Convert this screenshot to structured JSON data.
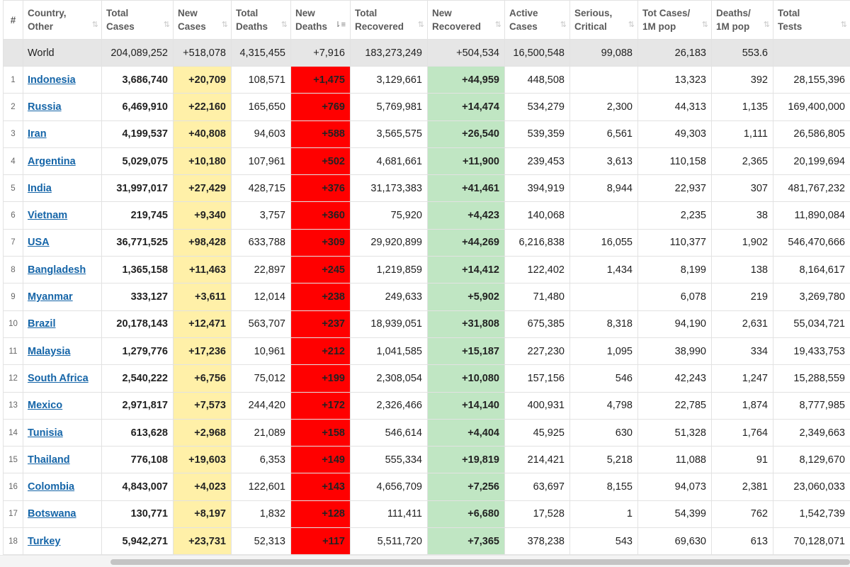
{
  "headers": [
    {
      "key": "rank",
      "lines": [
        "#"
      ],
      "sort": ""
    },
    {
      "key": "country",
      "lines": [
        "Country,",
        "Other"
      ],
      "sort": "⇅"
    },
    {
      "key": "total_cases",
      "lines": [
        "Total",
        "Cases"
      ],
      "sort": "⇅"
    },
    {
      "key": "new_cases",
      "lines": [
        "New",
        "Cases"
      ],
      "sort": "⇅"
    },
    {
      "key": "total_deaths",
      "lines": [
        "Total",
        "Deaths"
      ],
      "sort": "⇅"
    },
    {
      "key": "new_deaths",
      "lines": [
        "New",
        "Deaths"
      ],
      "sort": "⇂≡"
    },
    {
      "key": "total_recovered",
      "lines": [
        "Total",
        "Recovered"
      ],
      "sort": "⇅"
    },
    {
      "key": "new_recovered",
      "lines": [
        "New",
        "Recovered"
      ],
      "sort": "⇅"
    },
    {
      "key": "active_cases",
      "lines": [
        "Active",
        "Cases"
      ],
      "sort": "⇅"
    },
    {
      "key": "serious_critical",
      "lines": [
        "Serious,",
        "Critical"
      ],
      "sort": "⇅"
    },
    {
      "key": "tot_cases_1m",
      "lines": [
        "Tot Cases/",
        "1M pop"
      ],
      "sort": "⇅"
    },
    {
      "key": "deaths_1m",
      "lines": [
        "Deaths/",
        "1M pop"
      ],
      "sort": "⇅"
    },
    {
      "key": "total_tests",
      "lines": [
        "Total",
        "Tests"
      ],
      "sort": "⇅"
    }
  ],
  "world": {
    "rank": "",
    "country": "World",
    "total_cases": "204,089,252",
    "new_cases": "+518,078",
    "total_deaths": "4,315,455",
    "new_deaths": "+7,916",
    "total_recovered": "183,273,249",
    "new_recovered": "+504,534",
    "active_cases": "16,500,548",
    "serious_critical": "99,088",
    "tot_cases_1m": "26,183",
    "deaths_1m": "553.6",
    "total_tests": ""
  },
  "rows": [
    {
      "rank": "1",
      "country": "Indonesia",
      "total_cases": "3,686,740",
      "new_cases": "+20,709",
      "total_deaths": "108,571",
      "new_deaths": "+1,475",
      "total_recovered": "3,129,661",
      "new_recovered": "+44,959",
      "active_cases": "448,508",
      "serious_critical": "",
      "tot_cases_1m": "13,323",
      "deaths_1m": "392",
      "total_tests": "28,155,396"
    },
    {
      "rank": "2",
      "country": "Russia",
      "total_cases": "6,469,910",
      "new_cases": "+22,160",
      "total_deaths": "165,650",
      "new_deaths": "+769",
      "total_recovered": "5,769,981",
      "new_recovered": "+14,474",
      "active_cases": "534,279",
      "serious_critical": "2,300",
      "tot_cases_1m": "44,313",
      "deaths_1m": "1,135",
      "total_tests": "169,400,000"
    },
    {
      "rank": "3",
      "country": "Iran",
      "total_cases": "4,199,537",
      "new_cases": "+40,808",
      "total_deaths": "94,603",
      "new_deaths": "+588",
      "total_recovered": "3,565,575",
      "new_recovered": "+26,540",
      "active_cases": "539,359",
      "serious_critical": "6,561",
      "tot_cases_1m": "49,303",
      "deaths_1m": "1,111",
      "total_tests": "26,586,805"
    },
    {
      "rank": "4",
      "country": "Argentina",
      "total_cases": "5,029,075",
      "new_cases": "+10,180",
      "total_deaths": "107,961",
      "new_deaths": "+502",
      "total_recovered": "4,681,661",
      "new_recovered": "+11,900",
      "active_cases": "239,453",
      "serious_critical": "3,613",
      "tot_cases_1m": "110,158",
      "deaths_1m": "2,365",
      "total_tests": "20,199,694"
    },
    {
      "rank": "5",
      "country": "India",
      "total_cases": "31,997,017",
      "new_cases": "+27,429",
      "total_deaths": "428,715",
      "new_deaths": "+376",
      "total_recovered": "31,173,383",
      "new_recovered": "+41,461",
      "active_cases": "394,919",
      "serious_critical": "8,944",
      "tot_cases_1m": "22,937",
      "deaths_1m": "307",
      "total_tests": "481,767,232"
    },
    {
      "rank": "6",
      "country": "Vietnam",
      "total_cases": "219,745",
      "new_cases": "+9,340",
      "total_deaths": "3,757",
      "new_deaths": "+360",
      "total_recovered": "75,920",
      "new_recovered": "+4,423",
      "active_cases": "140,068",
      "serious_critical": "",
      "tot_cases_1m": "2,235",
      "deaths_1m": "38",
      "total_tests": "11,890,084"
    },
    {
      "rank": "7",
      "country": "USA",
      "total_cases": "36,771,525",
      "new_cases": "+98,428",
      "total_deaths": "633,788",
      "new_deaths": "+309",
      "total_recovered": "29,920,899",
      "new_recovered": "+44,269",
      "active_cases": "6,216,838",
      "serious_critical": "16,055",
      "tot_cases_1m": "110,377",
      "deaths_1m": "1,902",
      "total_tests": "546,470,666"
    },
    {
      "rank": "8",
      "country": "Bangladesh",
      "total_cases": "1,365,158",
      "new_cases": "+11,463",
      "total_deaths": "22,897",
      "new_deaths": "+245",
      "total_recovered": "1,219,859",
      "new_recovered": "+14,412",
      "active_cases": "122,402",
      "serious_critical": "1,434",
      "tot_cases_1m": "8,199",
      "deaths_1m": "138",
      "total_tests": "8,164,617"
    },
    {
      "rank": "9",
      "country": "Myanmar",
      "total_cases": "333,127",
      "new_cases": "+3,611",
      "total_deaths": "12,014",
      "new_deaths": "+238",
      "total_recovered": "249,633",
      "new_recovered": "+5,902",
      "active_cases": "71,480",
      "serious_critical": "",
      "tot_cases_1m": "6,078",
      "deaths_1m": "219",
      "total_tests": "3,269,780"
    },
    {
      "rank": "10",
      "country": "Brazil",
      "total_cases": "20,178,143",
      "new_cases": "+12,471",
      "total_deaths": "563,707",
      "new_deaths": "+237",
      "total_recovered": "18,939,051",
      "new_recovered": "+31,808",
      "active_cases": "675,385",
      "serious_critical": "8,318",
      "tot_cases_1m": "94,190",
      "deaths_1m": "2,631",
      "total_tests": "55,034,721"
    },
    {
      "rank": "11",
      "country": "Malaysia",
      "total_cases": "1,279,776",
      "new_cases": "+17,236",
      "total_deaths": "10,961",
      "new_deaths": "+212",
      "total_recovered": "1,041,585",
      "new_recovered": "+15,187",
      "active_cases": "227,230",
      "serious_critical": "1,095",
      "tot_cases_1m": "38,990",
      "deaths_1m": "334",
      "total_tests": "19,433,753"
    },
    {
      "rank": "12",
      "country": "South Africa",
      "total_cases": "2,540,222",
      "new_cases": "+6,756",
      "total_deaths": "75,012",
      "new_deaths": "+199",
      "total_recovered": "2,308,054",
      "new_recovered": "+10,080",
      "active_cases": "157,156",
      "serious_critical": "546",
      "tot_cases_1m": "42,243",
      "deaths_1m": "1,247",
      "total_tests": "15,288,559"
    },
    {
      "rank": "13",
      "country": "Mexico",
      "total_cases": "2,971,817",
      "new_cases": "+7,573",
      "total_deaths": "244,420",
      "new_deaths": "+172",
      "total_recovered": "2,326,466",
      "new_recovered": "+14,140",
      "active_cases": "400,931",
      "serious_critical": "4,798",
      "tot_cases_1m": "22,785",
      "deaths_1m": "1,874",
      "total_tests": "8,777,985"
    },
    {
      "rank": "14",
      "country": "Tunisia",
      "total_cases": "613,628",
      "new_cases": "+2,968",
      "total_deaths": "21,089",
      "new_deaths": "+158",
      "total_recovered": "546,614",
      "new_recovered": "+4,404",
      "active_cases": "45,925",
      "serious_critical": "630",
      "tot_cases_1m": "51,328",
      "deaths_1m": "1,764",
      "total_tests": "2,349,663"
    },
    {
      "rank": "15",
      "country": "Thailand",
      "total_cases": "776,108",
      "new_cases": "+19,603",
      "total_deaths": "6,353",
      "new_deaths": "+149",
      "total_recovered": "555,334",
      "new_recovered": "+19,819",
      "active_cases": "214,421",
      "serious_critical": "5,218",
      "tot_cases_1m": "11,088",
      "deaths_1m": "91",
      "total_tests": "8,129,670"
    },
    {
      "rank": "16",
      "country": "Colombia",
      "total_cases": "4,843,007",
      "new_cases": "+4,023",
      "total_deaths": "122,601",
      "new_deaths": "+143",
      "total_recovered": "4,656,709",
      "new_recovered": "+7,256",
      "active_cases": "63,697",
      "serious_critical": "8,155",
      "tot_cases_1m": "94,073",
      "deaths_1m": "2,381",
      "total_tests": "23,060,033"
    },
    {
      "rank": "17",
      "country": "Botswana",
      "total_cases": "130,771",
      "new_cases": "+8,197",
      "total_deaths": "1,832",
      "new_deaths": "+128",
      "total_recovered": "111,411",
      "new_recovered": "+6,680",
      "active_cases": "17,528",
      "serious_critical": "1",
      "tot_cases_1m": "54,399",
      "deaths_1m": "762",
      "total_tests": "1,542,739"
    },
    {
      "rank": "18",
      "country": "Turkey",
      "total_cases": "5,942,271",
      "new_cases": "+23,731",
      "total_deaths": "52,313",
      "new_deaths": "+117",
      "total_recovered": "5,511,720",
      "new_recovered": "+7,365",
      "active_cases": "378,238",
      "serious_critical": "543",
      "tot_cases_1m": "69,630",
      "deaths_1m": "613",
      "total_tests": "70,128,071"
    }
  ],
  "colors": {
    "new_cases_bg": "#fff0a8",
    "new_deaths_bg": "#ff0000",
    "new_recovered_bg": "#c0e6c3",
    "world_row_bg": "#e6e6e6",
    "link": "#1565a8"
  },
  "icons": {
    "sort": "sort-arrows-icon",
    "sort_active": "sort-descending-icon"
  }
}
